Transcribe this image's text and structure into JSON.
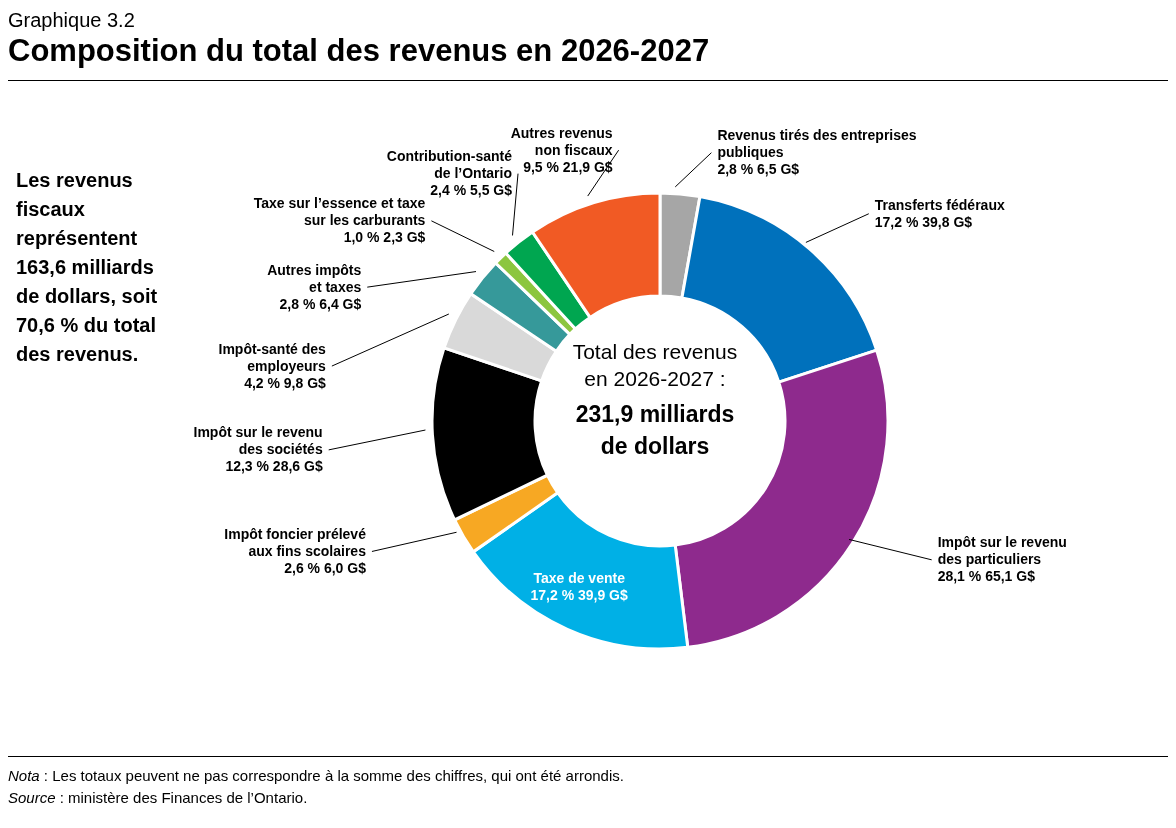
{
  "chart_data": {
    "type": "donut",
    "subtitle": "Graphique 3.2",
    "title": "Composition du total des revenus en 2026-2027",
    "categories": [
      "Revenus tirés des entreprises\npubliques",
      "Transferts fédéraux",
      "Impôt sur le revenu\ndes particuliers",
      "Taxe de vente",
      "Impôt foncier prélevé\naux fins scolaires",
      "Impôt sur le revenu\ndes sociétés",
      "Impôt-santé des\nemployeurs",
      "Autres impôts\net taxes",
      "Taxe sur l’essence et taxe\nsur les carburants",
      "Contribution-santé\nde l’Ontario",
      "Autres revenus\nnon fiscaux"
    ],
    "values": [
      6.5,
      39.8,
      65.1,
      39.9,
      6.0,
      28.6,
      9.8,
      6.4,
      2.3,
      5.5,
      21.9
    ],
    "value_labels": [
      "2,8 %  6,5 G$",
      "17,2 %  39,8 G$",
      "28,1 %  65,1 G$",
      "17,2 %  39,9 G$",
      "2,6 %  6,0 G$",
      "12,3 %  28,6 G$",
      "4,2 %  9,8 G$",
      "2,8 %  6,4 G$",
      "1,0 %  2,3 G$",
      "2,4 %  5,5 G$",
      "9,5 %  21,9 G$"
    ],
    "colors": [
      "#a6a6a6",
      "#0071bc",
      "#8e2a8d",
      "#00b0e6",
      "#f7a823",
      "#000000",
      "#d9d9d9",
      "#36999a",
      "#8cc63f",
      "#00a650",
      "#f15a24"
    ],
    "legend": false,
    "annotations": [
      "Les revenus fiscaux représentent 163,6 milliards de dollars, soit 70,6 % du total des revenus.",
      "Total des revenus en 2026-2027 :",
      "231,9 milliards de dollars",
      "Nota : Les totaux peuvent ne pas correspondre à la somme des chiffres, qui ont été arrondis.",
      "Source : ministère des Finances de l’Ontario."
    ]
  }
}
